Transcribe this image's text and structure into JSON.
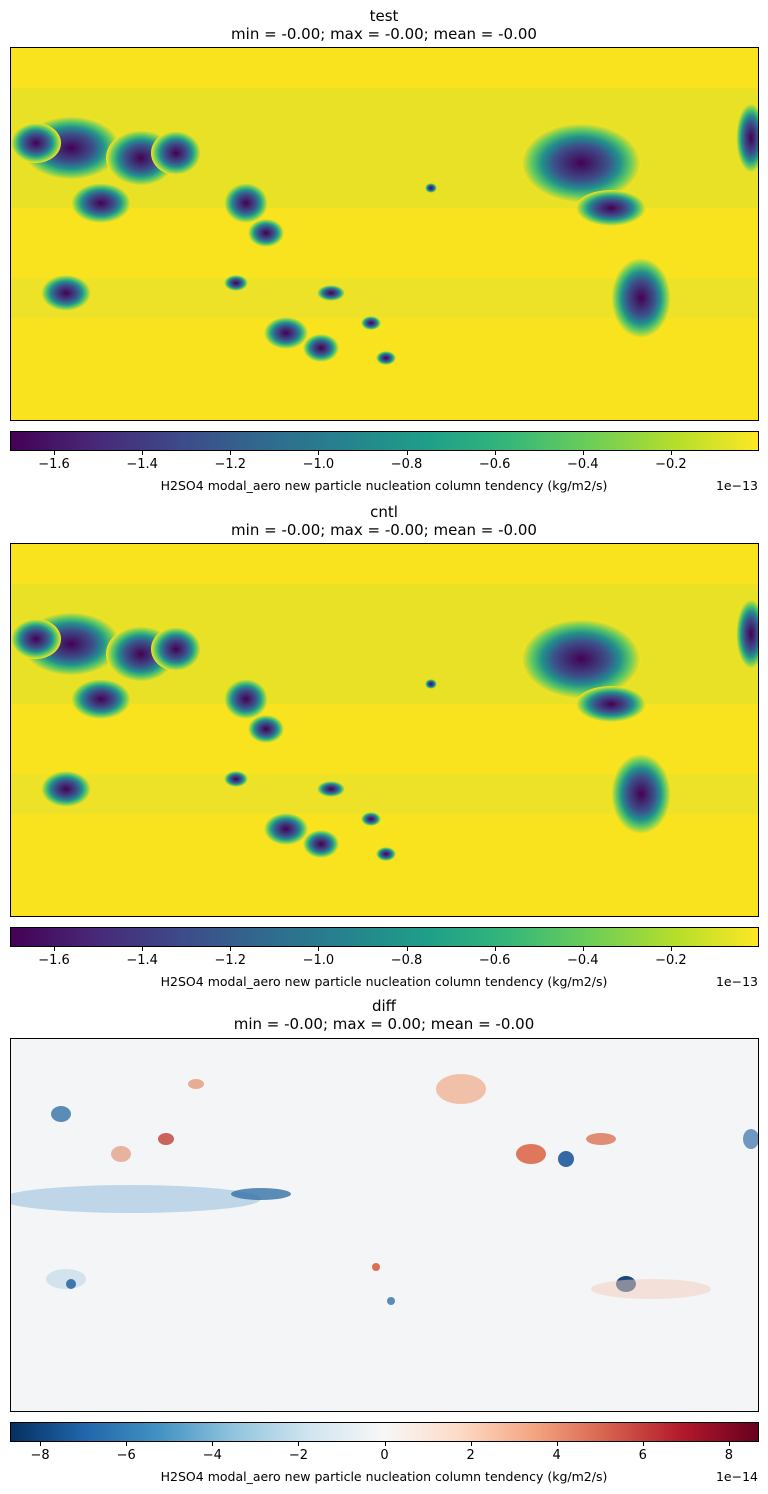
{
  "chart_data": [
    {
      "type": "heatmap",
      "title": "test",
      "subtitle": "min = -0.00; max = -0.00; mean = -0.00",
      "colormap": "viridis",
      "colorbar": {
        "label": "H2SO4 modal_aero new particle nucleation column tendency (kg/m2/s)",
        "exponent_label": "1e−13",
        "range": [
          -1.7,
          0.0
        ],
        "ticks": [
          -1.6,
          -1.4,
          -1.2,
          -1.0,
          -0.8,
          -0.6,
          -0.4,
          -0.2
        ],
        "tick_labels": [
          "−1.6",
          "−1.4",
          "−1.2",
          "−1.0",
          "−0.8",
          "−0.6",
          "−0.4",
          "−0.2"
        ]
      }
    },
    {
      "type": "heatmap",
      "title": "cntl",
      "subtitle": "min = -0.00; max = -0.00; mean = -0.00",
      "colormap": "viridis",
      "colorbar": {
        "label": "H2SO4 modal_aero new particle nucleation column tendency (kg/m2/s)",
        "exponent_label": "1e−13",
        "range": [
          -1.7,
          0.0
        ],
        "ticks": [
          -1.6,
          -1.4,
          -1.2,
          -1.0,
          -0.8,
          -0.6,
          -0.4,
          -0.2
        ],
        "tick_labels": [
          "−1.6",
          "−1.4",
          "−1.2",
          "−1.0",
          "−0.8",
          "−0.6",
          "−0.4",
          "−0.2"
        ]
      }
    },
    {
      "type": "heatmap",
      "title": "diff",
      "subtitle": "min = -0.00; max = 0.00; mean = -0.00",
      "colormap": "RdBu_r",
      "colorbar": {
        "label": "H2SO4 modal_aero new particle nucleation column tendency (kg/m2/s)",
        "exponent_label": "1e−14",
        "range": [
          -8.7,
          8.7
        ],
        "ticks": [
          -8,
          -6,
          -4,
          -2,
          0,
          2,
          4,
          6,
          8
        ],
        "tick_labels": [
          "−8",
          "−6",
          "−4",
          "−2",
          "0",
          "2",
          "4",
          "6",
          "8"
        ]
      }
    }
  ]
}
